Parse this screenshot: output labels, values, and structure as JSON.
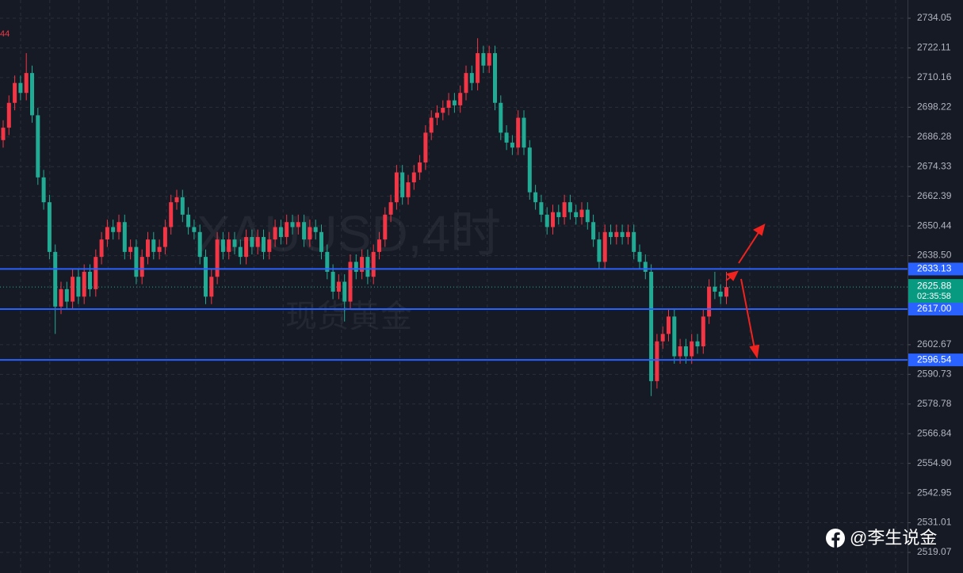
{
  "chart_data": {
    "type": "candlestick",
    "watermark": "XAUUSD,4时",
    "subtitle": "现货黄金",
    "corner_label": "44",
    "credit": "@李生说金",
    "up_color": "#f23645",
    "down_color": "#22ab94",
    "ylim": [
      2512.37,
      2741.39
    ],
    "yticks": [
      2734.05,
      2722.11,
      2710.16,
      2698.22,
      2686.28,
      2674.33,
      2662.39,
      2650.44,
      {
        "value": 2638.5,
        "label": "2638.50"
      },
      2602.67,
      2590.73,
      2578.78,
      2566.84,
      {
        "value": 2554.9,
        "label": "2554.90"
      },
      2542.95,
      2531.01,
      2519.07
    ],
    "grid": true,
    "levels": [
      2633.13,
      {
        "value": 2617,
        "label": "2617.00"
      },
      2596.54
    ],
    "last_price": 2625.88,
    "countdown": "02:35:58",
    "open": [
      2685,
      2690,
      2700,
      2708,
      2704,
      2712,
      2695,
      2670,
      2660,
      2640,
      2618,
      2625,
      2620,
      2630,
      2622,
      2632,
      2625,
      2638,
      2645,
      2650,
      2648,
      2652,
      2640,
      2642,
      2630,
      2638,
      2645,
      2640,
      2642,
      2650,
      2660,
      2662,
      2655,
      2650,
      2648,
      2638,
      2622,
      2630,
      2645,
      2640,
      2645,
      2642,
      2638,
      2646,
      2642,
      2646,
      2640,
      2645,
      2650,
      2646,
      2652,
      2650,
      2652,
      2645,
      2650,
      2648,
      2640,
      2632,
      2624,
      2628,
      2620,
      2636,
      2632,
      2638,
      2630,
      2640,
      2645,
      2655,
      2660,
      2672,
      2662,
      2668,
      2672,
      2676,
      2688,
      2694,
      2696,
      2698,
      2701,
      2699,
      2704,
      2712,
      2708,
      2720,
      2715,
      2720,
      2700,
      2688,
      2684,
      2682,
      2694,
      2682,
      2664,
      2660,
      2655,
      2650,
      2656,
      2654,
      2660,
      2656,
      2654,
      2657,
      2652,
      2645,
      2636,
      2648,
      2646,
      2648,
      2646,
      2648,
      2640,
      2636,
      2632,
      2588,
      2604,
      2607,
      2614,
      2598,
      2602,
      2598,
      2604,
      2602,
      2614,
      2626,
      2624,
      2622
    ],
    "high": [
      2693,
      2703,
      2711,
      2711,
      2720,
      2715,
      2698,
      2673,
      2663,
      2643,
      2628,
      2628,
      2633,
      2633,
      2635,
      2635,
      2641,
      2648,
      2653,
      2653,
      2655,
      2655,
      2645,
      2645,
      2641,
      2648,
      2648,
      2645,
      2653,
      2663,
      2665,
      2665,
      2658,
      2653,
      2651,
      2641,
      2633,
      2648,
      2648,
      2648,
      2648,
      2645,
      2649,
      2649,
      2649,
      2649,
      2648,
      2653,
      2653,
      2655,
      2655,
      2655,
      2655,
      2653,
      2653,
      2651,
      2643,
      2635,
      2631,
      2631,
      2639,
      2639,
      2641,
      2641,
      2643,
      2648,
      2658,
      2663,
      2675,
      2675,
      2671,
      2675,
      2679,
      2691,
      2697,
      2699,
      2701,
      2704,
      2704,
      2707,
      2715,
      2715,
      2726,
      2723,
      2723,
      2723,
      2703,
      2691,
      2687,
      2697,
      2697,
      2685,
      2667,
      2663,
      2658,
      2659,
      2659,
      2663,
      2663,
      2659,
      2660,
      2660,
      2655,
      2648,
      2651,
      2651,
      2651,
      2651,
      2651,
      2651,
      2643,
      2639,
      2635,
      2607,
      2610,
      2617,
      2617,
      2605,
      2605,
      2607,
      2607,
      2617,
      2629,
      2632,
      2627,
      2632
    ],
    "low": [
      2682,
      2687,
      2697,
      2701,
      2701,
      2692,
      2667,
      2657,
      2637,
      2607,
      2615,
      2617,
      2617,
      2619,
      2619,
      2622,
      2622,
      2635,
      2642,
      2645,
      2645,
      2637,
      2637,
      2627,
      2627,
      2635,
      2637,
      2637,
      2639,
      2647,
      2657,
      2652,
      2647,
      2645,
      2635,
      2619,
      2619,
      2627,
      2637,
      2637,
      2639,
      2635,
      2635,
      2639,
      2639,
      2637,
      2637,
      2642,
      2643,
      2643,
      2647,
      2647,
      2642,
      2642,
      2645,
      2637,
      2629,
      2621,
      2621,
      2612,
      2617,
      2629,
      2629,
      2627,
      2627,
      2637,
      2642,
      2652,
      2657,
      2659,
      2659,
      2665,
      2669,
      2673,
      2685,
      2691,
      2693,
      2695,
      2696,
      2696,
      2701,
      2705,
      2705,
      2712,
      2712,
      2697,
      2685,
      2681,
      2679,
      2679,
      2679,
      2661,
      2657,
      2652,
      2647,
      2647,
      2651,
      2651,
      2653,
      2651,
      2651,
      2649,
      2642,
      2633,
      2633,
      2643,
      2643,
      2643,
      2643,
      2637,
      2633,
      2629,
      2582,
      2585,
      2601,
      2604,
      2595,
      2595,
      2595,
      2595,
      2599,
      2599,
      2611,
      2621,
      2619,
      2619
    ],
    "close": [
      2690,
      2700,
      2708,
      2704,
      2712,
      2695,
      2670,
      2660,
      2640,
      2618,
      2625,
      2620,
      2630,
      2622,
      2632,
      2625,
      2638,
      2645,
      2650,
      2648,
      2652,
      2640,
      2642,
      2630,
      2638,
      2645,
      2640,
      2642,
      2650,
      2660,
      2662,
      2655,
      2650,
      2648,
      2638,
      2622,
      2630,
      2645,
      2640,
      2645,
      2642,
      2638,
      2646,
      2642,
      2646,
      2640,
      2645,
      2650,
      2646,
      2652,
      2650,
      2652,
      2645,
      2650,
      2648,
      2640,
      2632,
      2624,
      2628,
      2620,
      2636,
      2632,
      2638,
      2630,
      2640,
      2645,
      2655,
      2660,
      2672,
      2662,
      2668,
      2672,
      2676,
      2688,
      2694,
      2696,
      2698,
      2701,
      2699,
      2704,
      2712,
      2708,
      2720,
      2715,
      2720,
      2700,
      2688,
      2684,
      2682,
      2694,
      2682,
      2664,
      2660,
      2655,
      2650,
      2656,
      2654,
      2660,
      2656,
      2654,
      2657,
      2652,
      2645,
      2636,
      2648,
      2646,
      2648,
      2646,
      2648,
      2640,
      2636,
      2632,
      2588,
      2604,
      2607,
      2614,
      2598,
      2602,
      2598,
      2604,
      2602,
      2614,
      2626,
      2624,
      2622,
      2625.88
    ]
  }
}
